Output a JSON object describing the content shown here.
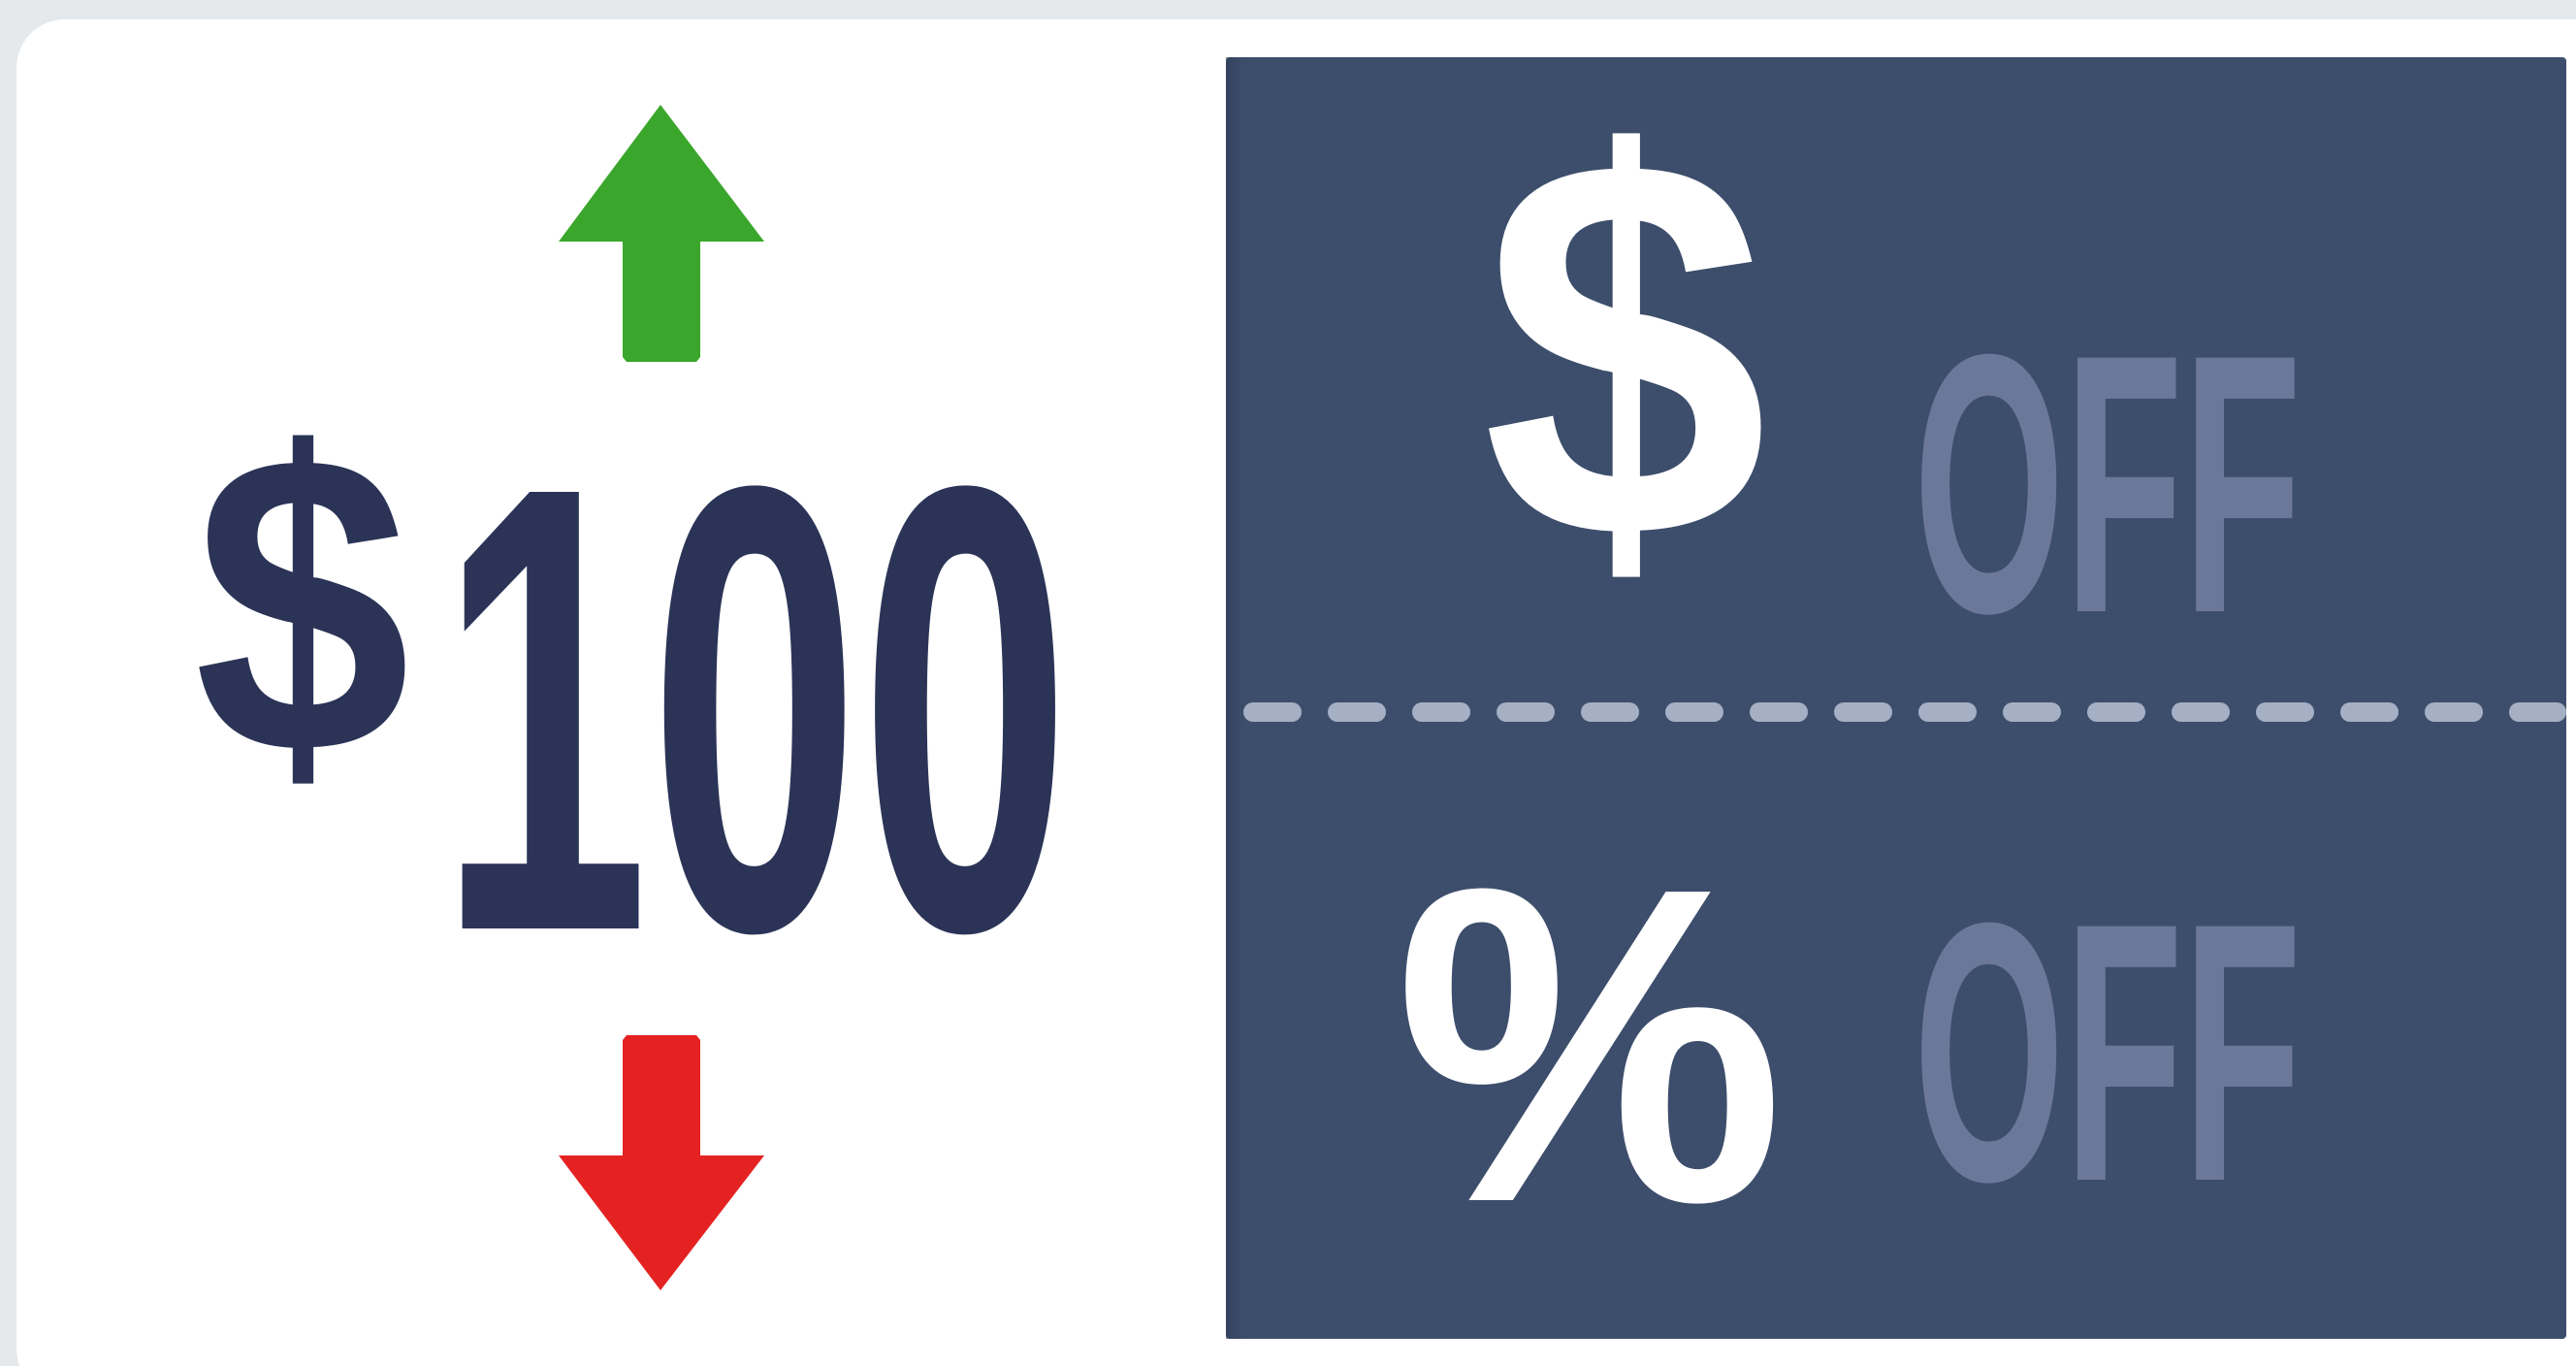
{
  "price": {
    "currency": "$",
    "amount": "100"
  },
  "options": [
    {
      "symbol": "$",
      "label": "OFF"
    },
    {
      "symbol": "%",
      "label": "OFF"
    }
  ]
}
